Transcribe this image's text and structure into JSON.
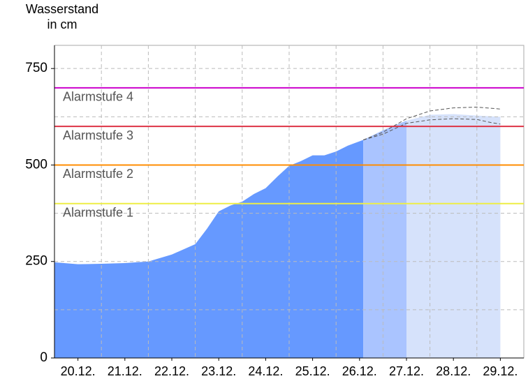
{
  "chart_data": {
    "type": "area",
    "y_label": [
      "Wasserstand",
      "in cm"
    ],
    "xlim": [
      0,
      10
    ],
    "xticks": [
      {
        "value": 0.5,
        "label": "20.12."
      },
      {
        "value": 1.5,
        "label": "21.12."
      },
      {
        "value": 2.5,
        "label": "22.12."
      },
      {
        "value": 3.5,
        "label": "23.12."
      },
      {
        "value": 4.5,
        "label": "24.12."
      },
      {
        "value": 5.5,
        "label": "25.12."
      },
      {
        "value": 6.5,
        "label": "26.12."
      },
      {
        "value": 7.5,
        "label": "27.12."
      },
      {
        "value": 8.5,
        "label": "28.12."
      },
      {
        "value": 9.5,
        "label": "29.12."
      }
    ],
    "xgrid": [
      1,
      2,
      3,
      4,
      5,
      6,
      7,
      8,
      9
    ],
    "ylim": [
      0,
      810
    ],
    "yticks": [
      0,
      250,
      500,
      750
    ],
    "ygrid": [
      125,
      250,
      375,
      500,
      625,
      750
    ],
    "series": [
      {
        "color": "#6699ff",
        "x": [
          0,
          0.5,
          1,
          1.5,
          2,
          2.5,
          3,
          3.25,
          3.5,
          3.75,
          4,
          4.25,
          4.5,
          4.75,
          5,
          5.25,
          5.5,
          5.75,
          6,
          6.25,
          6.58
        ],
        "values": [
          248,
          243,
          244,
          246,
          250,
          268,
          295,
          335,
          380,
          395,
          405,
          425,
          440,
          470,
          498,
          510,
          525,
          525,
          535,
          550,
          565
        ]
      },
      {
        "color": "#aac4ff",
        "x": [
          6.58,
          7,
          7.5
        ],
        "values": [
          565,
          590,
          615
        ]
      },
      {
        "color": "#d6e2fb",
        "x": [
          7.5,
          8,
          8.5,
          9,
          9.5
        ],
        "values": [
          615,
          630,
          632,
          628,
          625
        ]
      }
    ],
    "bands": [
      {
        "color": "#555555",
        "x": [
          6.58,
          7,
          7.5,
          8,
          8.5,
          9,
          9.5
        ],
        "values": [
          565,
          585,
          620,
          640,
          648,
          650,
          645
        ]
      },
      {
        "color": "#555555",
        "x": [
          6.58,
          7,
          7.5,
          8,
          8.5,
          9,
          9.3,
          9.5
        ],
        "values": [
          565,
          580,
          608,
          617,
          620,
          618,
          610,
          606
        ]
      }
    ],
    "levels": [
      {
        "label": "Alarmstufe 1",
        "value": 400,
        "color": "#eeee44"
      },
      {
        "label": "Alarmstufe 2",
        "value": 500,
        "color": "#ff8c00"
      },
      {
        "label": "Alarmstufe 3",
        "value": 600,
        "color": "#dd3344"
      },
      {
        "label": "Alarmstufe 4",
        "value": 700,
        "color": "#cc00cc"
      }
    ]
  }
}
